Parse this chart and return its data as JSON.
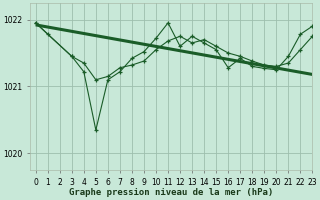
{
  "title": "Graphe pression niveau de la mer (hPa)",
  "bg_color": "#c8e8d8",
  "grid_color": "#9dbfad",
  "line_color": "#1a5c28",
  "xlim": [
    -0.5,
    23
  ],
  "ylim": [
    1019.75,
    1022.25
  ],
  "yticks": [
    1020,
    1021,
    1022
  ],
  "xtick_labels": [
    "0",
    "1",
    "2",
    "3",
    "4",
    "5",
    "6",
    "7",
    "8",
    "9",
    "10",
    "11",
    "12",
    "13",
    "14",
    "15",
    "16",
    "17",
    "18",
    "19",
    "20",
    "21",
    "22",
    "23"
  ],
  "series1_x": [
    0,
    1,
    3,
    4,
    5,
    6,
    7,
    8,
    9,
    10,
    11,
    12,
    13,
    14,
    15,
    16,
    17,
    18,
    19,
    20,
    21,
    22,
    23
  ],
  "series1_y": [
    1021.95,
    1021.78,
    1021.45,
    1021.35,
    1021.1,
    1021.15,
    1021.28,
    1021.32,
    1021.38,
    1021.55,
    1021.68,
    1021.75,
    1021.65,
    1021.7,
    1021.6,
    1021.5,
    1021.45,
    1021.38,
    1021.32,
    1021.3,
    1021.35,
    1021.55,
    1021.75
  ],
  "series2_x": [
    0,
    3,
    4,
    5,
    6,
    7,
    8,
    9,
    10,
    11,
    12,
    13,
    14,
    15,
    16,
    17,
    18,
    19,
    20,
    21,
    22,
    23
  ],
  "series2_y": [
    1021.95,
    1021.45,
    1021.22,
    1020.35,
    1021.1,
    1021.22,
    1021.42,
    1021.52,
    1021.72,
    1021.95,
    1021.6,
    1021.75,
    1021.65,
    1021.55,
    1021.28,
    1021.42,
    1021.3,
    1021.27,
    1021.25,
    1021.45,
    1021.78,
    1021.9
  ],
  "trend_x": [
    0,
    23
  ],
  "trend_y": [
    1021.92,
    1021.18
  ],
  "ylabel_fontsize": 5.5,
  "xlabel_fontsize": 6.5,
  "tick_fontsize": 5.5
}
